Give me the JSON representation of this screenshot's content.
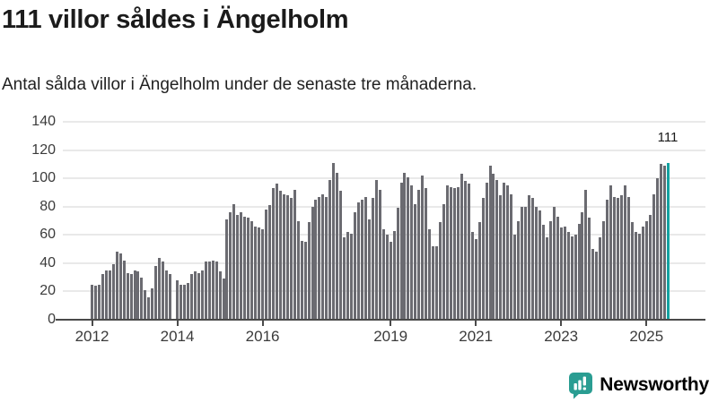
{
  "header": {
    "title": "111 villor såldes i Ängelholm",
    "subtitle": "Antal sålda villor i Ängelholm under de senaste tre månaderna."
  },
  "chart_data": {
    "type": "bar",
    "title": "111 villor såldes i Ängelholm",
    "xlabel": "",
    "ylabel": "",
    "ylim": [
      0,
      140
    ],
    "grid": true,
    "y_ticks": [
      0,
      20,
      40,
      60,
      80,
      100,
      120,
      140
    ],
    "x_tick_labels": [
      "2012",
      "2014",
      "2016",
      "2019",
      "2021",
      "2023",
      "2025"
    ],
    "x_tick_month_indices": [
      0,
      24,
      48,
      84,
      108,
      132,
      156
    ],
    "x_start": "2012-01",
    "x_end": "2025-07",
    "values": [
      25,
      24,
      25,
      32,
      35,
      35,
      39,
      48,
      47,
      42,
      33,
      32,
      35,
      34,
      30,
      21,
      16,
      22,
      38,
      44,
      41,
      35,
      32,
      0,
      28,
      25,
      25,
      26,
      32,
      34,
      33,
      35,
      41,
      41,
      42,
      41,
      34,
      29,
      71,
      76,
      82,
      74,
      76,
      73,
      72,
      70,
      66,
      65,
      64,
      78,
      81,
      93,
      96,
      91,
      89,
      88,
      86,
      92,
      70,
      56,
      55,
      69,
      80,
      85,
      87,
      89,
      87,
      99,
      111,
      104,
      91,
      58,
      62,
      61,
      76,
      83,
      85,
      87,
      71,
      86,
      99,
      92,
      64,
      60,
      55,
      63,
      79,
      97,
      104,
      101,
      95,
      82,
      92,
      102,
      93,
      64,
      52,
      52,
      69,
      82,
      95,
      94,
      93,
      94,
      103,
      98,
      96,
      62,
      57,
      69,
      86,
      97,
      109,
      103,
      99,
      88,
      97,
      95,
      89,
      60,
      70,
      80,
      80,
      88,
      86,
      80,
      77,
      67,
      58,
      70,
      80,
      73,
      65,
      66,
      62,
      59,
      60,
      68,
      76,
      92,
      72,
      50,
      48,
      58,
      70,
      85,
      95,
      87,
      86,
      88,
      95,
      87,
      69,
      62,
      61,
      66,
      70,
      74,
      89,
      100,
      110,
      109,
      111
    ],
    "highlight_index": 162,
    "highlight_value_label": "111",
    "colors": {
      "bar": "#6b6b71",
      "highlight": "#14a2a1",
      "grid": "#e9e9e9",
      "axis": "#4a4a4a",
      "tick_text": "#3b3b3b"
    }
  },
  "footer": {
    "brand": "Newsworthy",
    "brand_color": "#2a9d92",
    "logo_icon": "bar-chart-speech-bubble-icon"
  }
}
